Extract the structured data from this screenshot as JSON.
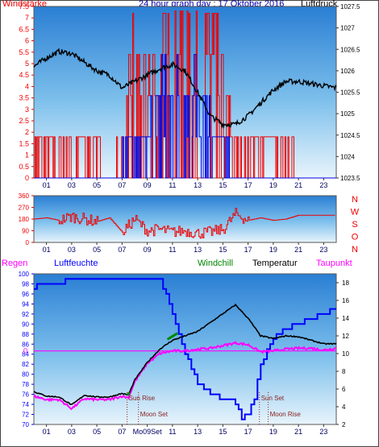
{
  "chart_data": [
    {
      "type": "line",
      "title": "24 hour graph day : 17 Oktober 2016",
      "ylabel_left": "Windstärke",
      "ylabel_right": "Luftdruck",
      "x_ticks": [
        "01",
        "03",
        "05",
        "07",
        "09",
        "11",
        "13",
        "15",
        "17",
        "19",
        "21",
        "23"
      ],
      "left_ticks": [
        "0",
        "0.5",
        "1",
        "1.5",
        "2",
        "2.5",
        "3",
        "3.5",
        "4",
        "4.5",
        "5",
        "5.5",
        "6",
        "6.5",
        "7",
        "7.5"
      ],
      "right_ticks": [
        "1023.5",
        "1024",
        "1024.5",
        "1025",
        "1025.5",
        "1026",
        "1026.5",
        "1027",
        "1027.5"
      ],
      "ylim_left": [
        0,
        7.5
      ],
      "ylim_right": [
        1023.5,
        1027.5
      ],
      "colors": {
        "wind_gust": "#ee0000",
        "wind_avg": "#0000dd",
        "pressure": "#000000"
      },
      "series": [
        {
          "name": "Luftdruck",
          "axis": "right",
          "x": [
            0,
            1,
            2,
            3,
            4,
            5,
            6,
            7,
            8,
            9,
            10,
            11,
            12,
            13,
            14,
            15,
            16,
            17,
            18,
            19,
            20,
            21,
            22,
            23,
            24
          ],
          "values": [
            1026.1,
            1026.3,
            1026.45,
            1026.4,
            1026.2,
            1026.0,
            1025.9,
            1025.6,
            1025.75,
            1025.9,
            1026.05,
            1026.15,
            1026.0,
            1025.5,
            1024.95,
            1024.75,
            1024.75,
            1024.95,
            1025.25,
            1025.55,
            1025.75,
            1025.75,
            1025.7,
            1025.65,
            1025.6
          ]
        },
        {
          "name": "",
          "axis": "left",
          "x": [
            0,
            1,
            2,
            3,
            4,
            5,
            6,
            7,
            8,
            9,
            10,
            11,
            12,
            13,
            14,
            15,
            16,
            17,
            18,
            19,
            20,
            21,
            22,
            23,
            24
          ],
          "values": [
            1.8,
            1.8,
            1.8,
            1.8,
            1.8,
            1.8,
            0,
            1.8,
            5.5,
            3.6,
            5.5,
            5.5,
            7.2,
            5.5,
            5.5,
            3.6,
            1.8,
            1.8,
            1.8,
            1.8,
            1.8,
            0,
            0,
            0,
            0
          ]
        },
        {
          "name": "",
          "axis": "left",
          "x": [
            0,
            1,
            2,
            3,
            4,
            5,
            6,
            7,
            8,
            9,
            10,
            11,
            12,
            13,
            14,
            15,
            16,
            17,
            18,
            19,
            20,
            21,
            22,
            23,
            24
          ],
          "values": [
            0,
            0,
            0,
            0,
            0,
            0,
            0,
            1.8,
            1.8,
            1.8,
            3.6,
            3.6,
            3.6,
            3.6,
            1.8,
            1.8,
            0,
            0,
            0,
            0,
            0,
            0,
            0,
            0,
            0
          ]
        }
      ]
    },
    {
      "type": "line",
      "x_ticks": [
        "01",
        "03",
        "05",
        "07",
        "09",
        "11",
        "13",
        "15",
        "17",
        "19",
        "21",
        "23"
      ],
      "left_ticks": [
        "360",
        "270",
        "180",
        "90",
        "0"
      ],
      "right_ticks": [
        "N",
        "W",
        "S",
        "O",
        "N"
      ],
      "ylim": [
        0,
        360
      ],
      "colors": {
        "direction": "#ee0000"
      },
      "series": [
        {
          "name": "",
          "x": [
            0,
            1,
            2,
            3,
            4,
            5,
            6,
            7,
            8,
            9,
            10,
            11,
            12,
            13,
            14,
            15,
            16,
            17,
            18,
            19,
            20,
            21,
            22,
            23,
            24
          ],
          "values": [
            180,
            190,
            170,
            200,
            180,
            160,
            190,
            80,
            180,
            90,
            100,
            80,
            90,
            70,
            80,
            100,
            220,
            170,
            190,
            170,
            180,
            210,
            210,
            210,
            210
          ]
        }
      ]
    },
    {
      "type": "line",
      "legend": [
        "Regen",
        "Luftfeuchte",
        "Windchill",
        "Temperatur",
        "Taupunkt"
      ],
      "x_ticks": [
        "01",
        "03",
        "05",
        "07",
        "Mo09Set",
        "11",
        "13",
        "15",
        "17",
        "19",
        "21",
        "23"
      ],
      "left_ticks": [
        "70",
        "72",
        "74",
        "76",
        "78",
        "80",
        "82",
        "84",
        "86",
        "88",
        "90",
        "92",
        "94",
        "96",
        "98",
        "100"
      ],
      "right_ticks": [
        "2",
        "4",
        "6",
        "8",
        "10",
        "12",
        "14",
        "16",
        "18"
      ],
      "rain_tick": "0",
      "ylim_left": [
        70,
        100
      ],
      "ylim_right": [
        2,
        19
      ],
      "annotations": [
        {
          "text": "Sun Rise",
          "x": 7.4
        },
        {
          "text": "Moon Set",
          "x": 8.3
        },
        {
          "text": "Sun Set",
          "x": 17.9
        },
        {
          "text": "Moon Rise",
          "x": 18.6
        }
      ],
      "colors": {
        "rain": "#ff00ff",
        "humidity": "#0000ff",
        "windchill": "#008800",
        "temperature": "#000000",
        "dewpoint": "#ff00ff"
      },
      "series": [
        {
          "name": "Luftfeuchte",
          "axis": "left",
          "x": [
            0,
            0.5,
            2,
            3,
            4,
            5,
            6,
            7,
            8,
            9,
            10,
            11,
            12,
            13,
            14,
            15,
            15.5,
            16,
            16.5,
            17,
            17.5,
            18,
            19,
            20,
            21,
            22,
            23,
            24
          ],
          "values": [
            97,
            98,
            98,
            99,
            99,
            99,
            99,
            99,
            99,
            99,
            99,
            92,
            84,
            78,
            76,
            75,
            75,
            74,
            71,
            72,
            75,
            82,
            87,
            89,
            90,
            91,
            92,
            93
          ]
        },
        {
          "name": "Temperatur",
          "axis": "right",
          "x": [
            0,
            1,
            2,
            3,
            4,
            5,
            6,
            7,
            7.5,
            8,
            9,
            10,
            11,
            12,
            13,
            14,
            15,
            16,
            17,
            18,
            19,
            20,
            21,
            22,
            23,
            24
          ],
          "values": [
            5.7,
            5.2,
            5.1,
            4.2,
            5.3,
            5.1,
            5.1,
            5.5,
            5.3,
            7,
            9,
            10.5,
            11.5,
            12,
            12.5,
            13.5,
            14.5,
            15.5,
            14,
            12,
            11.7,
            12,
            11.9,
            11.5,
            11.1,
            11.1
          ]
        },
        {
          "name": "Taupunkt",
          "axis": "right",
          "x": [
            0,
            1,
            2,
            3,
            4,
            5,
            6,
            7,
            7.5,
            8,
            9,
            10,
            11,
            12,
            13,
            14,
            15,
            16,
            17,
            18,
            19,
            20,
            21,
            22,
            23,
            24
          ],
          "values": [
            5.2,
            4.8,
            4.8,
            3.8,
            4.9,
            4.8,
            4.8,
            5.2,
            5.0,
            6.8,
            8.9,
            10.0,
            10.3,
            10.3,
            10.5,
            10.6,
            10.9,
            11.2,
            11.0,
            10.2,
            10.3,
            10.5,
            10.6,
            10.6,
            10.4,
            10.6
          ]
        },
        {
          "name": "Windchill",
          "axis": "right",
          "x": [
            7.4,
            7.6,
            10.6,
            11.4
          ],
          "values": [
            5.3,
            5.6,
            11.6,
            12.3
          ]
        },
        {
          "name": "Regen",
          "axis": "rain",
          "x": [
            0,
            24
          ],
          "values": [
            0,
            0
          ]
        }
      ]
    }
  ]
}
